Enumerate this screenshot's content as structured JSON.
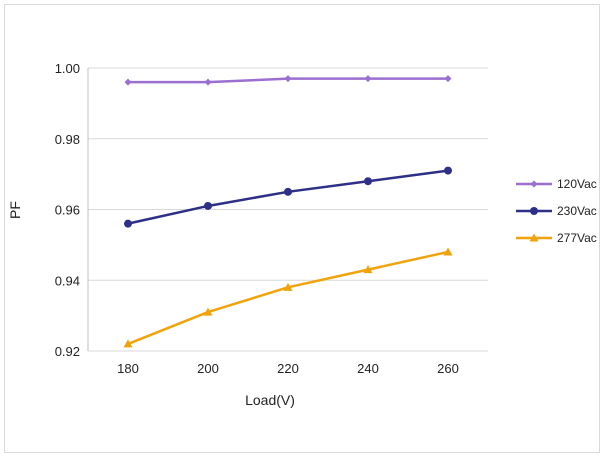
{
  "chart_data": {
    "type": "line",
    "title": "",
    "xlabel": "Load(V)",
    "ylabel": "PF",
    "x": [
      180,
      200,
      220,
      240,
      260
    ],
    "ylim": [
      0.92,
      1.0
    ],
    "yticks": [
      "0.92",
      "0.94",
      "0.96",
      "0.98",
      "1.00"
    ],
    "xticks": [
      "180",
      "200",
      "220",
      "240",
      "260"
    ],
    "grid": true,
    "legend_position": "right",
    "series": [
      {
        "name": "120Vac",
        "values": [
          0.996,
          0.996,
          0.997,
          0.997,
          0.997
        ],
        "color": "#9a6fcf",
        "marker": "diamond"
      },
      {
        "name": "230Vac",
        "values": [
          0.956,
          0.961,
          0.965,
          0.968,
          0.971
        ],
        "color": "#2e2f86",
        "marker": "circle"
      },
      {
        "name": "277Vac",
        "values": [
          0.922,
          0.931,
          0.938,
          0.943,
          0.948
        ],
        "color": "#f0a30a",
        "marker": "triangle"
      }
    ]
  }
}
